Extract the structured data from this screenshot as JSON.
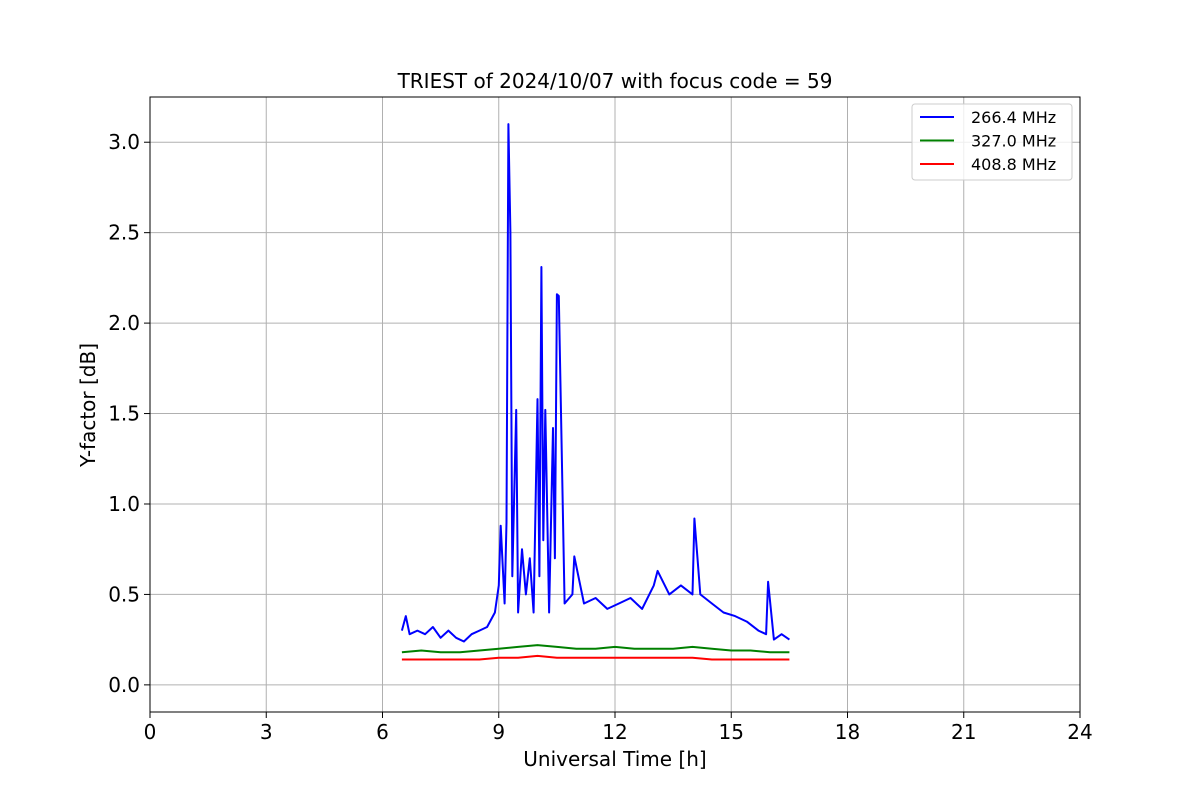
{
  "chart_data": {
    "type": "line",
    "title": "TRIEST of 2024/10/07 with focus code = 59",
    "xlabel": "Universal Time [h]",
    "ylabel": "Y-factor [dB]",
    "xlim": [
      0,
      24
    ],
    "ylim": [
      -0.15,
      3.25
    ],
    "xticks": [
      0,
      3,
      6,
      9,
      12,
      15,
      18,
      21,
      24
    ],
    "yticks": [
      0.0,
      0.5,
      1.0,
      1.5,
      2.0,
      2.5,
      3.0
    ],
    "ytick_labels": [
      "0.0",
      "0.5",
      "1.0",
      "1.5",
      "2.0",
      "2.5",
      "3.0"
    ],
    "grid": true,
    "legend_position": "top-right",
    "series": [
      {
        "name": "266.4 MHz",
        "color": "#0000ff",
        "x": [
          6.5,
          6.6,
          6.7,
          6.9,
          7.1,
          7.3,
          7.5,
          7.7,
          7.9,
          8.1,
          8.3,
          8.5,
          8.7,
          8.9,
          9.0,
          9.05,
          9.15,
          9.2,
          9.25,
          9.3,
          9.35,
          9.45,
          9.5,
          9.6,
          9.7,
          9.8,
          9.9,
          10.0,
          10.05,
          10.1,
          10.15,
          10.2,
          10.3,
          10.4,
          10.45,
          10.5,
          10.55,
          10.7,
          10.9,
          10.95,
          11.2,
          11.5,
          11.8,
          12.1,
          12.4,
          12.7,
          13.0,
          13.1,
          13.4,
          13.7,
          14.0,
          14.05,
          14.2,
          14.5,
          14.8,
          15.1,
          15.4,
          15.7,
          15.9,
          15.95,
          16.1,
          16.3,
          16.5
        ],
        "values": [
          0.3,
          0.38,
          0.28,
          0.3,
          0.28,
          0.32,
          0.26,
          0.3,
          0.26,
          0.24,
          0.28,
          0.3,
          0.32,
          0.4,
          0.55,
          0.88,
          0.45,
          0.9,
          3.1,
          2.5,
          0.6,
          1.52,
          0.4,
          0.75,
          0.5,
          0.7,
          0.4,
          1.58,
          0.6,
          2.31,
          0.8,
          1.52,
          0.4,
          1.42,
          0.7,
          2.16,
          2.15,
          0.45,
          0.5,
          0.71,
          0.45,
          0.48,
          0.42,
          0.45,
          0.48,
          0.42,
          0.55,
          0.63,
          0.5,
          0.55,
          0.5,
          0.92,
          0.5,
          0.45,
          0.4,
          0.38,
          0.35,
          0.3,
          0.28,
          0.57,
          0.25,
          0.28,
          0.25
        ]
      },
      {
        "name": "327.0 MHz",
        "color": "#008000",
        "x": [
          6.5,
          7.0,
          7.5,
          8.0,
          8.5,
          9.0,
          9.5,
          10.0,
          10.5,
          11.0,
          11.5,
          12.0,
          12.5,
          13.0,
          13.5,
          14.0,
          14.5,
          15.0,
          15.5,
          16.0,
          16.5
        ],
        "values": [
          0.18,
          0.19,
          0.18,
          0.18,
          0.19,
          0.2,
          0.21,
          0.22,
          0.21,
          0.2,
          0.2,
          0.21,
          0.2,
          0.2,
          0.2,
          0.21,
          0.2,
          0.19,
          0.19,
          0.18,
          0.18
        ]
      },
      {
        "name": "408.8 MHz",
        "color": "#ff0000",
        "x": [
          6.5,
          7.0,
          7.5,
          8.0,
          8.5,
          9.0,
          9.5,
          10.0,
          10.5,
          11.0,
          11.5,
          12.0,
          12.5,
          13.0,
          13.5,
          14.0,
          14.5,
          15.0,
          15.5,
          16.0,
          16.5
        ],
        "values": [
          0.14,
          0.14,
          0.14,
          0.14,
          0.14,
          0.15,
          0.15,
          0.16,
          0.15,
          0.15,
          0.15,
          0.15,
          0.15,
          0.15,
          0.15,
          0.15,
          0.14,
          0.14,
          0.14,
          0.14,
          0.14
        ]
      }
    ]
  }
}
